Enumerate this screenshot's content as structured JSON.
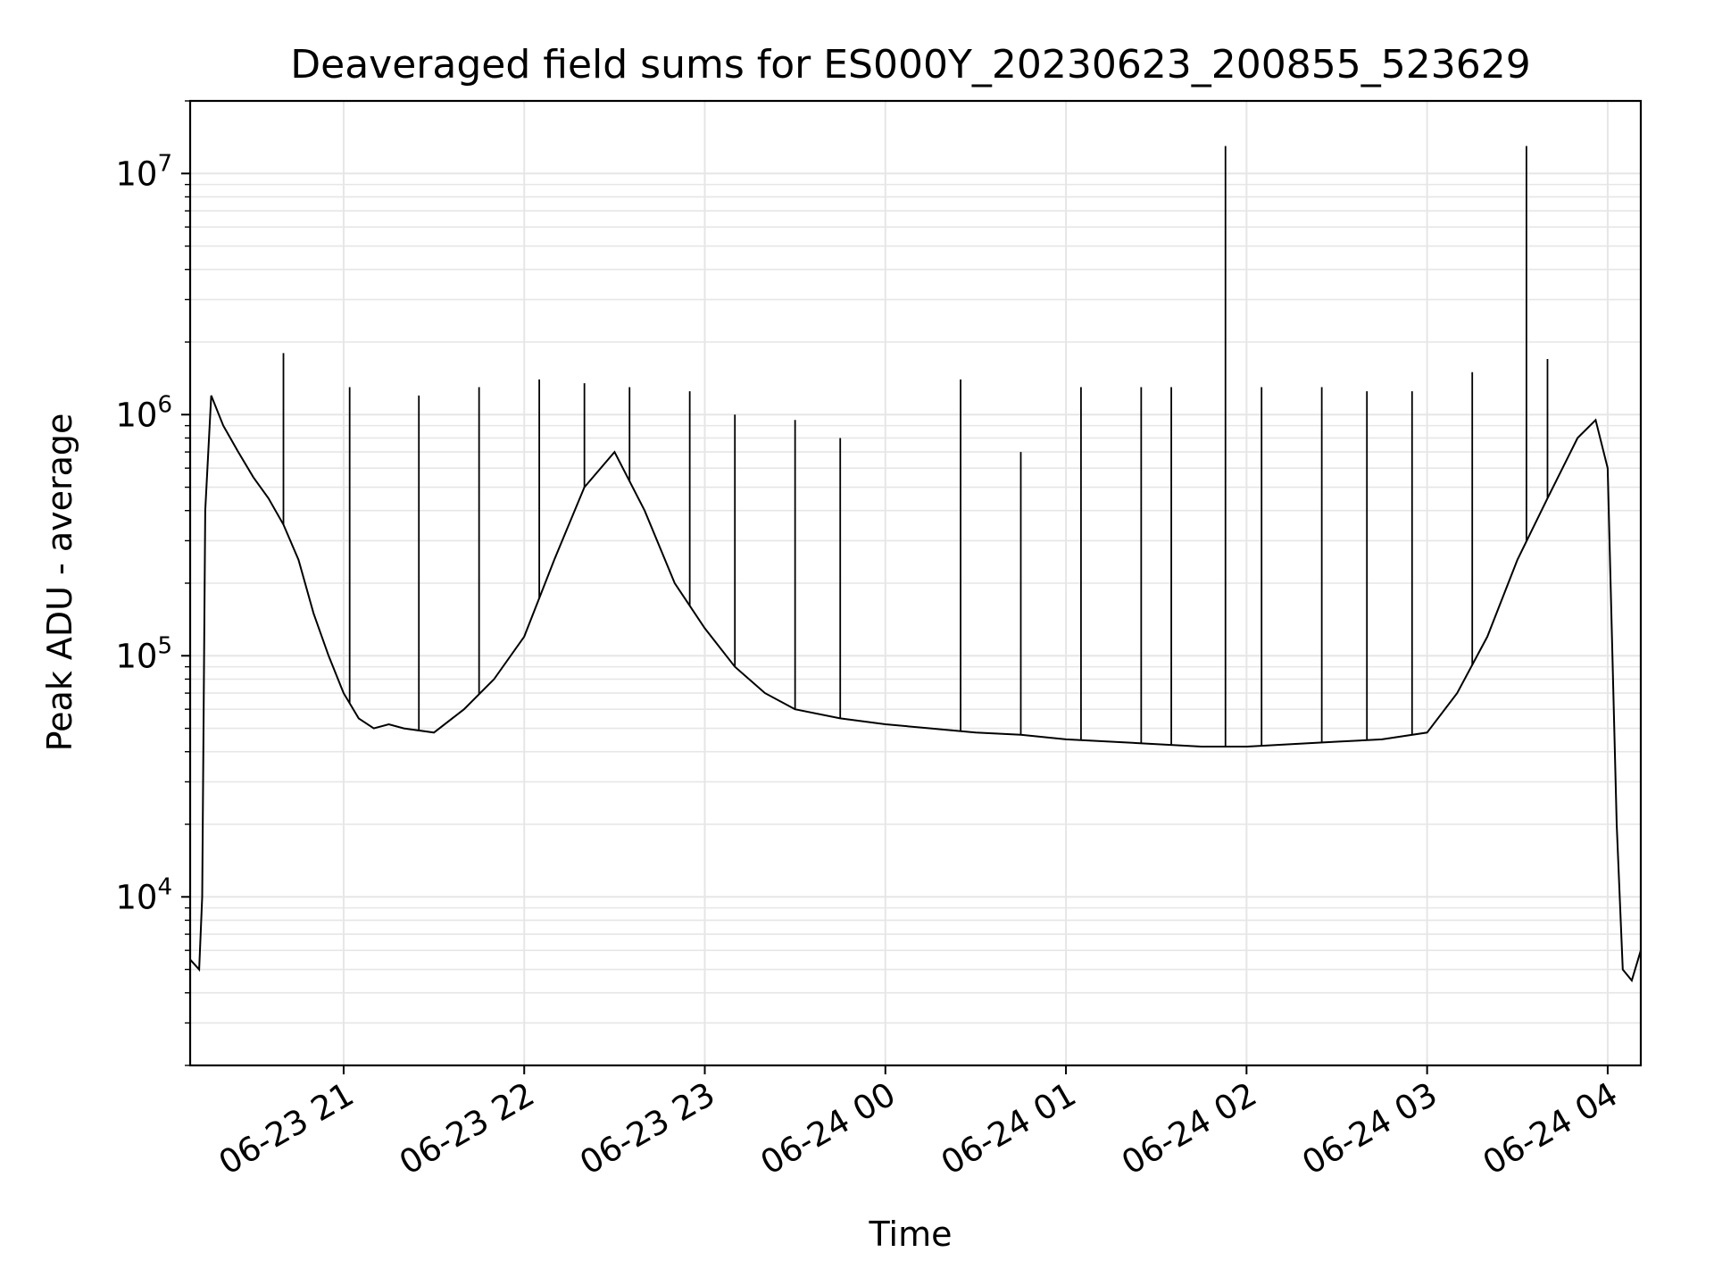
{
  "chart_data": {
    "type": "line",
    "title": "Deaveraged field sums for ES000Y_20230623_200855_523629",
    "xlabel": "Time",
    "ylabel": "Peak ADU - average",
    "y_scale": "log",
    "ylim": [
      2000,
      20000000
    ],
    "xlim": [
      "06-23 20:09",
      "06-24 04:11"
    ],
    "grid": true,
    "x_ticks": [
      "06-23 21",
      "06-23 22",
      "06-23 23",
      "06-24 00",
      "06-24 01",
      "06-24 02",
      "06-24 03",
      "06-24 04"
    ],
    "y_ticks": [
      {
        "base": "10",
        "exp": "4",
        "value": 10000
      },
      {
        "base": "10",
        "exp": "5",
        "value": 100000
      },
      {
        "base": "10",
        "exp": "6",
        "value": 1000000
      },
      {
        "base": "10",
        "exp": "7",
        "value": 10000000
      }
    ],
    "line_color": "#000000",
    "grid_color": "#e6e6e6",
    "series": [
      {
        "x": [
          "06-23 20:09",
          "06-23 20:12",
          "06-23 20:13",
          "06-23 20:14",
          "06-23 20:16",
          "06-23 20:20",
          "06-23 20:25",
          "06-23 20:30",
          "06-23 20:35",
          "06-23 20:40",
          "06-23 20:45",
          "06-23 20:50",
          "06-23 20:55",
          "06-23 21:00",
          "06-23 21:05",
          "06-23 21:10",
          "06-23 21:15",
          "06-23 21:20",
          "06-23 21:30",
          "06-23 21:40",
          "06-23 21:50",
          "06-23 22:00",
          "06-23 22:10",
          "06-23 22:20",
          "06-23 22:30",
          "06-23 22:40",
          "06-23 22:50",
          "06-23 23:00",
          "06-23 23:10",
          "06-23 23:20",
          "06-23 23:30",
          "06-23 23:45",
          "06-24 00:00",
          "06-24 00:15",
          "06-24 00:30",
          "06-24 00:45",
          "06-24 01:00",
          "06-24 01:15",
          "06-24 01:30",
          "06-24 01:45",
          "06-24 02:00",
          "06-24 02:15",
          "06-24 02:30",
          "06-24 02:45",
          "06-24 03:00",
          "06-24 03:10",
          "06-24 03:20",
          "06-24 03:30",
          "06-24 03:40",
          "06-24 03:50",
          "06-24 03:56",
          "06-24 04:00",
          "06-24 04:03",
          "06-24 04:05",
          "06-24 04:08",
          "06-24 04:11"
        ],
        "y": [
          5500,
          5000,
          10000,
          400000,
          1200000,
          900000,
          700000,
          550000,
          450000,
          350000,
          250000,
          150000,
          100000,
          70000,
          55000,
          50000,
          52000,
          50000,
          48000,
          60000,
          80000,
          120000,
          250000,
          500000,
          700000,
          400000,
          200000,
          130000,
          90000,
          70000,
          60000,
          55000,
          52000,
          50000,
          48000,
          47000,
          45000,
          44000,
          43000,
          42000,
          42000,
          43000,
          44000,
          45000,
          48000,
          70000,
          120000,
          250000,
          450000,
          800000,
          950000,
          600000,
          20000,
          5000,
          4500,
          6000
        ]
      }
    ],
    "spikes": [
      {
        "x": "06-23 20:40",
        "y": 1800000
      },
      {
        "x": "06-23 21:02",
        "y": 1300000
      },
      {
        "x": "06-23 21:25",
        "y": 1200000
      },
      {
        "x": "06-23 21:45",
        "y": 1300000
      },
      {
        "x": "06-23 22:05",
        "y": 1400000
      },
      {
        "x": "06-23 22:20",
        "y": 1350000
      },
      {
        "x": "06-23 22:35",
        "y": 1300000
      },
      {
        "x": "06-23 22:55",
        "y": 1250000
      },
      {
        "x": "06-23 23:10",
        "y": 1000000
      },
      {
        "x": "06-23 23:30",
        "y": 950000
      },
      {
        "x": "06-23 23:45",
        "y": 800000
      },
      {
        "x": "06-24 00:25",
        "y": 1400000
      },
      {
        "x": "06-24 00:45",
        "y": 700000
      },
      {
        "x": "06-24 01:05",
        "y": 1300000
      },
      {
        "x": "06-24 01:25",
        "y": 1300000
      },
      {
        "x": "06-24 01:35",
        "y": 1300000
      },
      {
        "x": "06-24 01:53",
        "y": 13000000
      },
      {
        "x": "06-24 02:05",
        "y": 1300000
      },
      {
        "x": "06-24 02:25",
        "y": 1300000
      },
      {
        "x": "06-24 02:40",
        "y": 1250000
      },
      {
        "x": "06-24 02:55",
        "y": 1250000
      },
      {
        "x": "06-24 03:15",
        "y": 1500000
      },
      {
        "x": "06-24 03:33",
        "y": 13000000
      },
      {
        "x": "06-24 03:40",
        "y": 1700000
      }
    ]
  }
}
